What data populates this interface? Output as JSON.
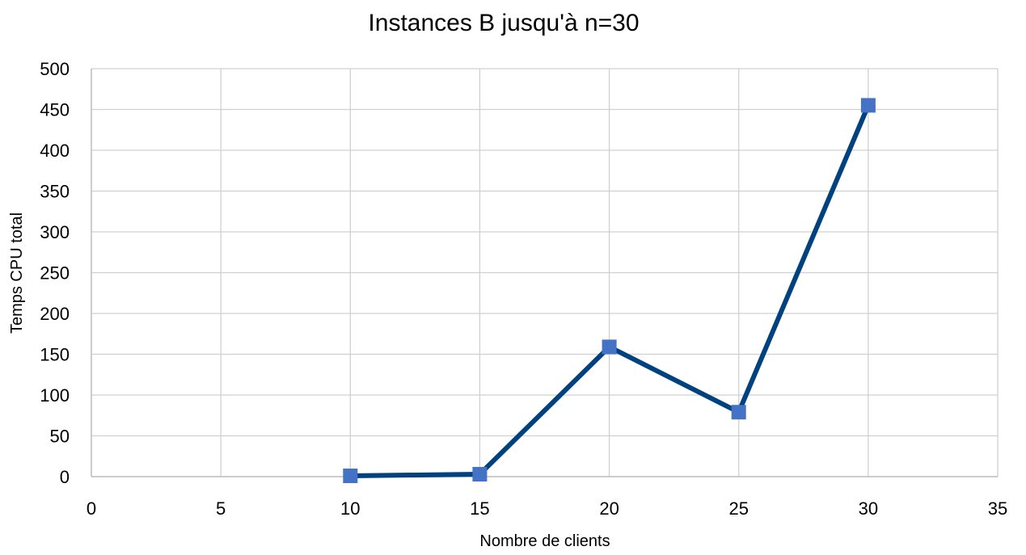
{
  "chart_data": {
    "type": "scatter",
    "title": "Instances B jusqu'à n=30",
    "xlabel": "Nombre de clients",
    "ylabel": "Temps CPU total",
    "xlim": [
      0,
      35
    ],
    "ylim": [
      0,
      500
    ],
    "xticks": [
      0,
      5,
      10,
      15,
      20,
      25,
      30,
      35
    ],
    "yticks": [
      0,
      50,
      100,
      150,
      200,
      250,
      300,
      350,
      400,
      450,
      500
    ],
    "grid": true,
    "legend": "none",
    "series": [
      {
        "x": [
          10,
          15,
          20,
          25,
          30
        ],
        "y": [
          1,
          3,
          159,
          79,
          455
        ],
        "line_color": "#004280",
        "marker_color": "#4472C4",
        "marker": "square"
      }
    ]
  }
}
